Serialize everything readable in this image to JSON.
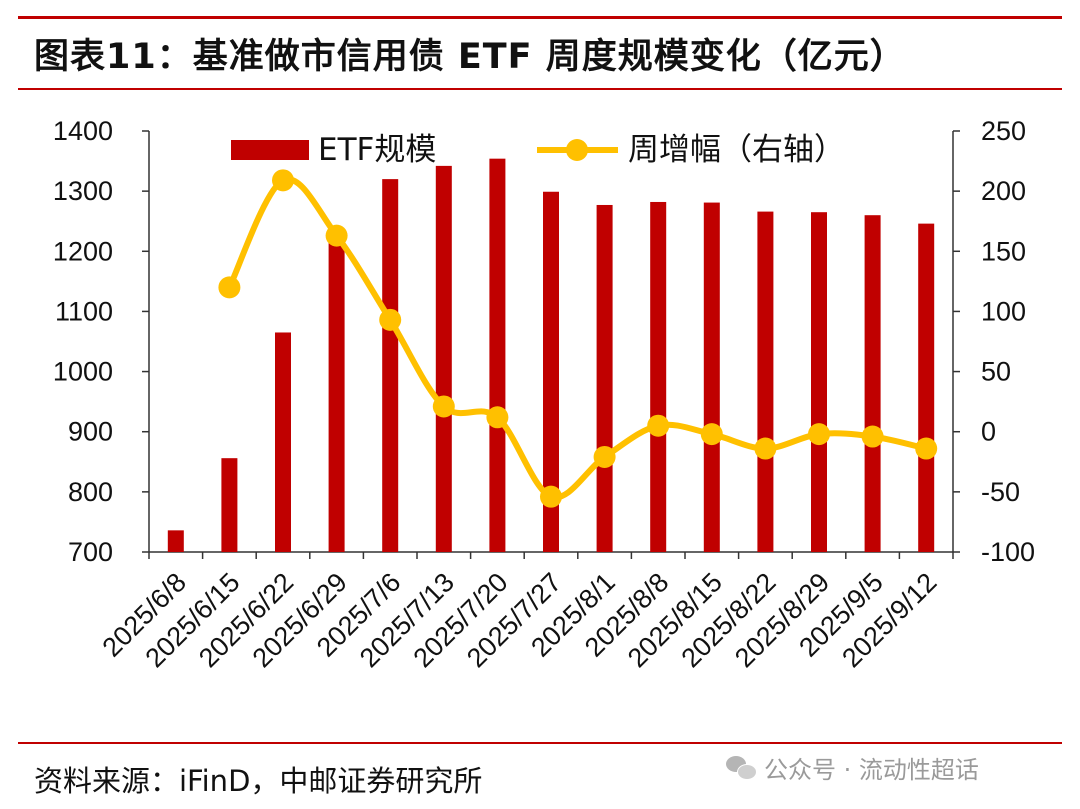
{
  "header": {
    "title": "图表11：基准做市信用债 ETF 周度规模变化（亿元）"
  },
  "footer": {
    "source": "资料来源：iFinD，中邮证券研究所",
    "watermark": "公众号 · 流动性超话"
  },
  "colors": {
    "bar": "#c00000",
    "line": "#ffc000",
    "accent_rule": "#c00000"
  },
  "chart_data": {
    "type": "bar+line",
    "categories": [
      "2025/6/8",
      "2025/6/15",
      "2025/6/22",
      "2025/6/29",
      "2025/7/6",
      "2025/7/13",
      "2025/7/20",
      "2025/7/27",
      "2025/8/1",
      "2025/8/8",
      "2025/8/15",
      "2025/8/22",
      "2025/8/29",
      "2025/9/5",
      "2025/9/12"
    ],
    "series": [
      {
        "name": "ETF规模",
        "type": "bar",
        "axis": "left",
        "values": [
          736,
          856,
          1065,
          1228,
          1320,
          1342,
          1354,
          1299,
          1277,
          1282,
          1281,
          1266,
          1265,
          1260,
          1246
        ]
      },
      {
        "name": "周增幅（右轴）",
        "type": "line",
        "axis": "right",
        "values": [
          null,
          120,
          209,
          163,
          93,
          21,
          12,
          -54,
          -21,
          5,
          -2,
          -14,
          -2,
          -4,
          -14
        ]
      }
    ],
    "y_left": {
      "min": 700,
      "max": 1400,
      "ticks": [
        1400,
        1300,
        1200,
        1100,
        1000,
        900,
        800,
        700
      ]
    },
    "y_right": {
      "min": -100,
      "max": 250,
      "ticks": [
        250,
        200,
        150,
        100,
        50,
        0,
        -50,
        -100
      ]
    },
    "legend_position": "top"
  }
}
